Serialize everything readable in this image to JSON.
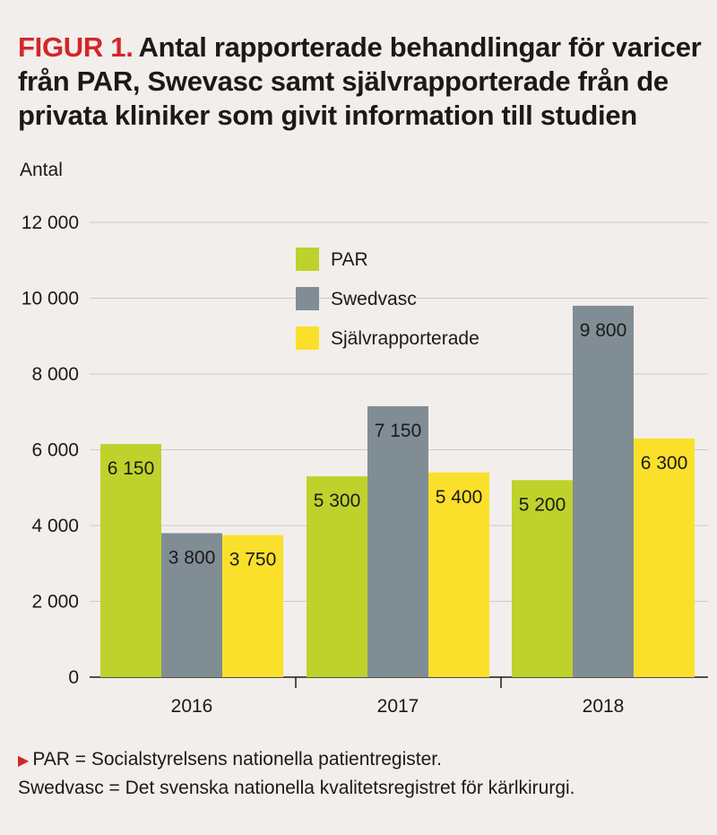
{
  "title_prefix": "FIGUR 1.",
  "title_text": "Antal rapporterade behandlingar för varicer från PAR, Swevasc samt självrapporterade från de privata kliniker som givit information till studien",
  "colors": {
    "PAR": "#bed22b",
    "Swedvasc": "#818d95",
    "Självrapporterade": "#fae02a",
    "accent": "#d3262b"
  },
  "chart_data": {
    "type": "bar",
    "title": "Antal rapporterade behandlingar för varicer från PAR, Swevasc samt självrapporterade från de privata kliniker som givit information till studien",
    "ylabel": "Antal",
    "xlabel": "",
    "categories": [
      "2016",
      "2017",
      "2018"
    ],
    "series": [
      {
        "name": "PAR",
        "values": [
          6150,
          5300,
          5200
        ],
        "labels": [
          "6 150",
          "5 300",
          "5 200"
        ]
      },
      {
        "name": "Swedvasc",
        "values": [
          3800,
          7150,
          9800
        ],
        "labels": [
          "3 800",
          "7 150",
          "9 800"
        ]
      },
      {
        "name": "Självrapporterade",
        "values": [
          3750,
          5400,
          6300
        ],
        "labels": [
          "3 750",
          "5 400",
          "6 300"
        ]
      }
    ],
    "ylim": [
      0,
      12000
    ],
    "yticks": [
      0,
      2000,
      4000,
      6000,
      8000,
      10000,
      12000
    ],
    "ytick_labels": [
      "0",
      "2 000",
      "4 000",
      "6 000",
      "8 000",
      "10 000",
      "12 000"
    ],
    "grid": true,
    "legend": "top-center"
  },
  "footnotes": [
    "PAR = Socialstyrelsens nationella patientregister.",
    "Swedvasc = Det svenska nationella kvalitetsregistret för kärlkirurgi."
  ]
}
